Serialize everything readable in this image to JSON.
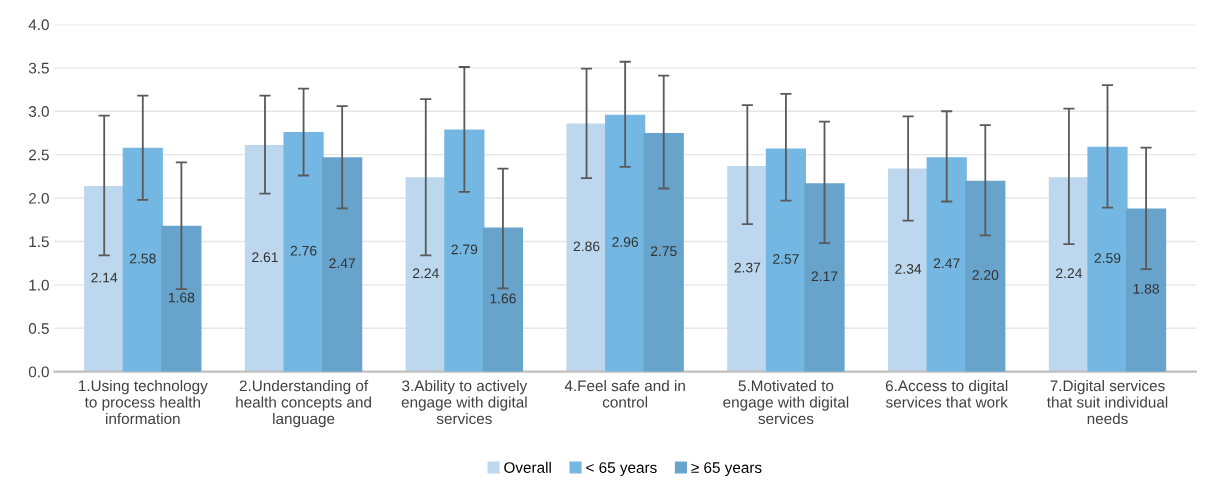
{
  "chart_data": {
    "type": "bar",
    "categories": [
      "1.Using technology\nto process health\ninformation",
      "2.Understanding of\nhealth concepts and\nlanguage",
      "3.Ability to actively\nengage with digital\nservices",
      "4.Feel safe and in\ncontrol",
      "5.Motivated to\nengage with digital\nservices",
      "6.Access to digital\nservices that work",
      "7.Digital services\nthat suit individual\nneeds"
    ],
    "series": [
      {
        "name": "Overall",
        "color": "#bdd7ee",
        "values": [
          2.14,
          2.61,
          2.24,
          2.86,
          2.37,
          2.34,
          2.24
        ],
        "value_labels": [
          "2.14",
          "2.61",
          "2.24",
          "2.86",
          "2.37",
          "2.34",
          "2.24"
        ],
        "errors": [
          [
            1.34,
            2.95
          ],
          [
            2.05,
            3.18
          ],
          [
            1.34,
            3.14
          ],
          [
            2.23,
            3.49
          ],
          [
            1.7,
            3.07
          ],
          [
            1.74,
            2.94
          ],
          [
            1.47,
            3.03
          ]
        ]
      },
      {
        "name": "< 65 years",
        "color": "#74b7e2",
        "values": [
          2.58,
          2.76,
          2.79,
          2.96,
          2.57,
          2.47,
          2.59
        ],
        "value_labels": [
          "2.58",
          "2.76",
          "2.79",
          "2.96",
          "2.57",
          "2.47",
          "2.59"
        ],
        "errors": [
          [
            1.98,
            3.18
          ],
          [
            2.26,
            3.26
          ],
          [
            2.07,
            3.51
          ],
          [
            2.36,
            3.57
          ],
          [
            1.97,
            3.2
          ],
          [
            1.96,
            3.0
          ],
          [
            1.89,
            3.3
          ]
        ]
      },
      {
        "name": "≥ 65 years",
        "color": "#67a3cb",
        "values": [
          1.68,
          2.47,
          1.66,
          2.75,
          2.17,
          2.2,
          1.88
        ],
        "value_labels": [
          "1.68",
          "2.47",
          "1.66",
          "2.75",
          "2.17",
          "2.20",
          "1.88"
        ],
        "errors": [
          [
            0.95,
            2.41
          ],
          [
            1.88,
            3.06
          ],
          [
            0.96,
            2.34
          ],
          [
            2.11,
            3.41
          ],
          [
            1.48,
            2.88
          ],
          [
            1.57,
            2.84
          ],
          [
            1.18,
            2.58
          ]
        ]
      }
    ],
    "ylim": [
      0,
      4
    ],
    "yticks": [
      {
        "value": 0,
        "label": "0.0"
      },
      {
        "value": 0.5,
        "label": "0.5"
      },
      {
        "value": 1,
        "label": "1.0"
      },
      {
        "value": 1.5,
        "label": "1.5"
      },
      {
        "value": 2,
        "label": "2.0"
      },
      {
        "value": 2.5,
        "label": "2.5"
      },
      {
        "value": 3,
        "label": "3.0"
      },
      {
        "value": 3.5,
        "label": "3.5"
      },
      {
        "value": 4,
        "label": "4.0"
      }
    ],
    "grid": "y",
    "legend": "bottom"
  }
}
